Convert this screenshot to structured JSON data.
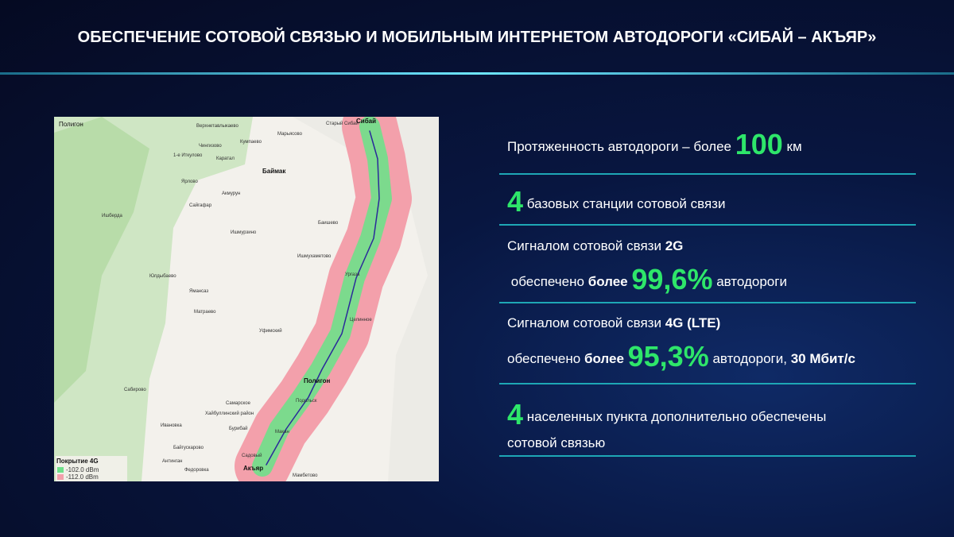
{
  "header": {
    "title": "ОБЕСПЕЧЕНИЕ СОТОВОЙ СВЯЗЬЮ И МОБИЛЬНЫМ ИНТЕРНЕТОМ АВТОДОРОГИ «СИБАЙ – АКЪЯР»"
  },
  "map": {
    "label": "Полигон",
    "places": [
      "Верхнетавлыкаево",
      "Марьясово",
      "Старый Сибай",
      "Сибай",
      "Кумпаево",
      "Чингизово",
      "1-е Иткулово",
      "Каратал",
      "Баймак",
      "Ярлово",
      "Акмурун",
      "Сайгафар",
      "Ишберда",
      "Баишево",
      "Ишмурзино",
      "Ишмухаметово",
      "Юлдыбаево",
      "Ургаза",
      "Ямансаз",
      "Матраево",
      "Уфимский",
      "Целинное",
      "Сабирово",
      "Полигон",
      "Подольск",
      "Самарское",
      "Хайбуллинский район",
      "Ивановка",
      "Бурибай",
      "Макан",
      "Байгускарово",
      "Садовый",
      "Антинган",
      "Федоровка",
      "Акъяр",
      "Мамбетово"
    ],
    "legend": {
      "title": "Покрытие 4G",
      "items": [
        "-102.0 dBm",
        "-112.0 dBm"
      ]
    }
  },
  "stats": [
    {
      "lines": [
        [
          "Протяженность автодороги – более",
          "100",
          "км"
        ]
      ]
    },
    {
      "lines": [
        [
          "4",
          "базовых станции сотовой связи"
        ]
      ]
    },
    {
      "lines": [
        [
          "Сигналом сотовой связи",
          "2G"
        ],
        [
          "обеспечено",
          "более",
          "99,6%",
          "автодороги"
        ]
      ]
    },
    {
      "lines": [
        [
          "Сигналом сотовой связи",
          "4G (LTE)"
        ],
        [
          "обеспечено",
          "более",
          "95,3%",
          "автодороги,",
          "30 Мбит/с"
        ]
      ]
    },
    {
      "lines": [
        [
          "4",
          "населенных пункта дополнительно обеспечены"
        ],
        [
          "сотовой связью"
        ]
      ]
    }
  ]
}
